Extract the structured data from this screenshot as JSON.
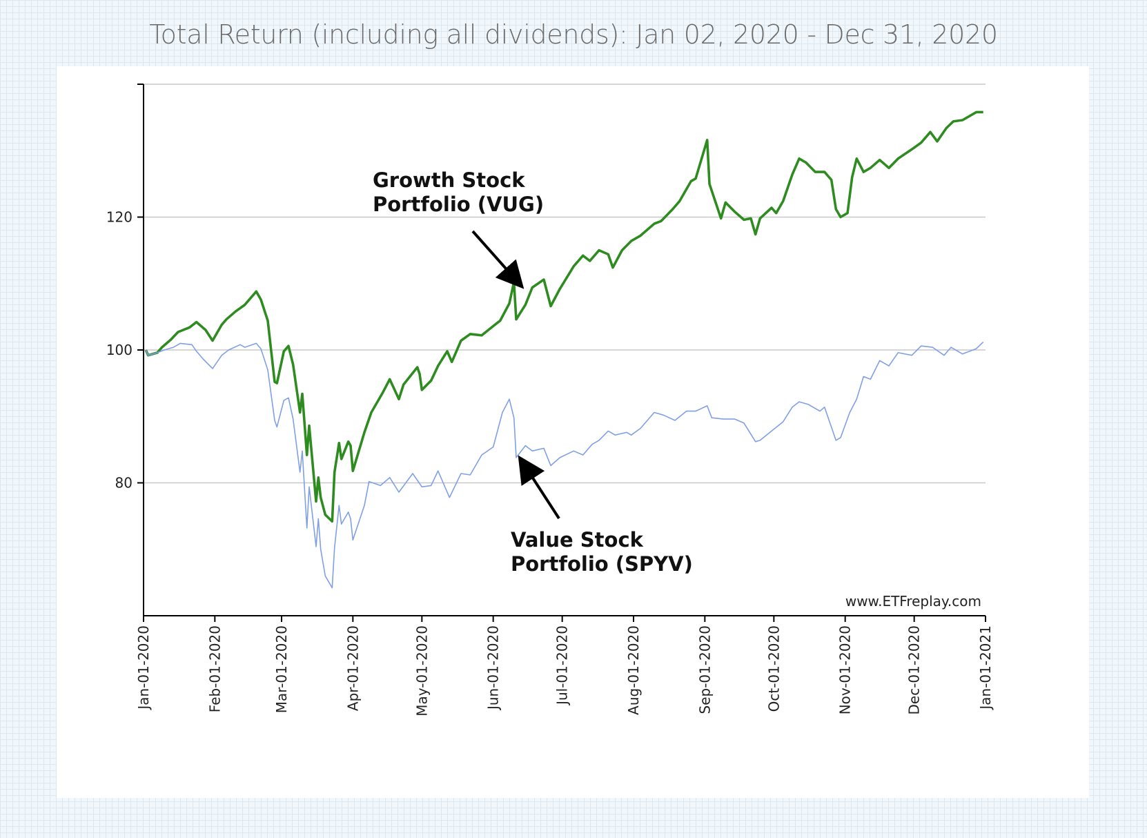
{
  "chart_data": {
    "type": "line",
    "title": "Total Return (including all dividends): Jan 02, 2020 - Dec 31, 2020",
    "xlabel": "",
    "ylabel": "",
    "x_range": [
      "2020-01-01",
      "2021-01-01"
    ],
    "ylim": [
      60,
      140
    ],
    "y_ticks": [
      80,
      100,
      120
    ],
    "x_tick_labels": [
      "Jan-01-2020",
      "Feb-01-2020",
      "Mar-01-2020",
      "Apr-01-2020",
      "May-01-2020",
      "Jun-01-2020",
      "Jul-01-2020",
      "Aug-01-2020",
      "Sep-01-2020",
      "Oct-01-2020",
      "Nov-01-2020",
      "Dec-01-2020",
      "Jan-01-2021"
    ],
    "x_tick_dates": [
      "2020-01-01",
      "2020-02-01",
      "2020-03-01",
      "2020-04-01",
      "2020-05-01",
      "2020-06-01",
      "2020-07-01",
      "2020-08-01",
      "2020-09-01",
      "2020-10-01",
      "2020-11-01",
      "2020-12-01",
      "2021-01-01"
    ],
    "grid": "horizontal",
    "series": [
      {
        "name": "Growth Stock Portfolio (VUG)",
        "color": "#2e8b20",
        "points": [
          [
            "2020-01-02",
            100
          ],
          [
            "2020-01-03",
            99.2
          ],
          [
            "2020-01-07",
            99.6
          ],
          [
            "2020-01-09",
            100.4
          ],
          [
            "2020-01-13",
            101.6
          ],
          [
            "2020-01-16",
            102.7
          ],
          [
            "2020-01-21",
            103.4
          ],
          [
            "2020-01-24",
            104.2
          ],
          [
            "2020-01-28",
            103.0
          ],
          [
            "2020-01-31",
            101.4
          ],
          [
            "2020-02-04",
            103.8
          ],
          [
            "2020-02-06",
            104.6
          ],
          [
            "2020-02-10",
            105.8
          ],
          [
            "2020-02-14",
            106.8
          ],
          [
            "2020-02-19",
            108.8
          ],
          [
            "2020-02-21",
            107.6
          ],
          [
            "2020-02-24",
            104.4
          ],
          [
            "2020-02-27",
            95.2
          ],
          [
            "2020-02-28",
            95.0
          ],
          [
            "2020-03-02",
            99.8
          ],
          [
            "2020-03-04",
            100.6
          ],
          [
            "2020-03-06",
            97.8
          ],
          [
            "2020-03-09",
            90.6
          ],
          [
            "2020-03-10",
            93.4
          ],
          [
            "2020-03-12",
            84.2
          ],
          [
            "2020-03-13",
            88.6
          ],
          [
            "2020-03-16",
            77.2
          ],
          [
            "2020-03-17",
            80.8
          ],
          [
            "2020-03-18",
            77.8
          ],
          [
            "2020-03-20",
            75.2
          ],
          [
            "2020-03-23",
            74.2
          ],
          [
            "2020-03-24",
            81.6
          ],
          [
            "2020-03-26",
            86.0
          ],
          [
            "2020-03-27",
            83.6
          ],
          [
            "2020-03-30",
            86.2
          ],
          [
            "2020-03-31",
            85.6
          ],
          [
            "2020-04-01",
            81.8
          ],
          [
            "2020-04-06",
            87.6
          ],
          [
            "2020-04-09",
            90.6
          ],
          [
            "2020-04-14",
            93.6
          ],
          [
            "2020-04-17",
            95.6
          ],
          [
            "2020-04-21",
            92.6
          ],
          [
            "2020-04-23",
            94.8
          ],
          [
            "2020-04-29",
            97.4
          ],
          [
            "2020-04-30",
            96.4
          ],
          [
            "2020-05-01",
            94.0
          ],
          [
            "2020-05-05",
            95.4
          ],
          [
            "2020-05-08",
            97.6
          ],
          [
            "2020-05-12",
            99.8
          ],
          [
            "2020-05-14",
            98.2
          ],
          [
            "2020-05-18",
            101.4
          ],
          [
            "2020-05-22",
            102.4
          ],
          [
            "2020-05-27",
            102.2
          ],
          [
            "2020-06-01",
            103.6
          ],
          [
            "2020-06-04",
            104.4
          ],
          [
            "2020-06-08",
            107.0
          ],
          [
            "2020-06-10",
            110.2
          ],
          [
            "2020-06-11",
            104.6
          ],
          [
            "2020-06-15",
            106.8
          ],
          [
            "2020-06-18",
            109.4
          ],
          [
            "2020-06-23",
            110.6
          ],
          [
            "2020-06-26",
            106.6
          ],
          [
            "2020-06-30",
            109.2
          ],
          [
            "2020-07-06",
            112.6
          ],
          [
            "2020-07-10",
            114.2
          ],
          [
            "2020-07-13",
            113.4
          ],
          [
            "2020-07-17",
            115.0
          ],
          [
            "2020-07-21",
            114.4
          ],
          [
            "2020-07-23",
            112.4
          ],
          [
            "2020-07-27",
            115.0
          ],
          [
            "2020-07-31",
            116.4
          ],
          [
            "2020-08-04",
            117.2
          ],
          [
            "2020-08-10",
            119.0
          ],
          [
            "2020-08-13",
            119.4
          ],
          [
            "2020-08-18",
            121.2
          ],
          [
            "2020-08-21",
            122.4
          ],
          [
            "2020-08-26",
            125.4
          ],
          [
            "2020-08-28",
            125.8
          ],
          [
            "2020-09-02",
            131.6
          ],
          [
            "2020-09-03",
            125.0
          ],
          [
            "2020-09-08",
            119.8
          ],
          [
            "2020-09-10",
            122.2
          ],
          [
            "2020-09-14",
            120.8
          ],
          [
            "2020-09-18",
            119.6
          ],
          [
            "2020-09-21",
            119.8
          ],
          [
            "2020-09-23",
            117.4
          ],
          [
            "2020-09-25",
            119.8
          ],
          [
            "2020-09-30",
            121.4
          ],
          [
            "2020-10-02",
            120.6
          ],
          [
            "2020-10-05",
            122.4
          ],
          [
            "2020-10-09",
            126.4
          ],
          [
            "2020-10-12",
            128.8
          ],
          [
            "2020-10-15",
            128.2
          ],
          [
            "2020-10-19",
            126.8
          ],
          [
            "2020-10-23",
            126.8
          ],
          [
            "2020-10-26",
            125.6
          ],
          [
            "2020-10-28",
            121.2
          ],
          [
            "2020-10-30",
            120.0
          ],
          [
            "2020-11-02",
            120.6
          ],
          [
            "2020-11-04",
            126.0
          ],
          [
            "2020-11-06",
            128.8
          ],
          [
            "2020-11-09",
            126.8
          ],
          [
            "2020-11-12",
            127.4
          ],
          [
            "2020-11-16",
            128.6
          ],
          [
            "2020-11-20",
            127.4
          ],
          [
            "2020-11-24",
            128.8
          ],
          [
            "2020-11-30",
            130.2
          ],
          [
            "2020-12-04",
            131.2
          ],
          [
            "2020-12-08",
            132.8
          ],
          [
            "2020-12-11",
            131.4
          ],
          [
            "2020-12-15",
            133.4
          ],
          [
            "2020-12-18",
            134.4
          ],
          [
            "2020-12-22",
            134.6
          ],
          [
            "2020-12-28",
            135.8
          ],
          [
            "2020-12-31",
            135.8
          ]
        ]
      },
      {
        "name": "Value Stock Portfolio (SPYV)",
        "color": "#7f9fe8",
        "points": [
          [
            "2020-01-02",
            100
          ],
          [
            "2020-01-03",
            99.2
          ],
          [
            "2020-01-07",
            99.6
          ],
          [
            "2020-01-10",
            100.0
          ],
          [
            "2020-01-14",
            100.4
          ],
          [
            "2020-01-17",
            101.0
          ],
          [
            "2020-01-22",
            100.8
          ],
          [
            "2020-01-24",
            99.8
          ],
          [
            "2020-01-27",
            98.6
          ],
          [
            "2020-01-31",
            97.2
          ],
          [
            "2020-02-04",
            99.2
          ],
          [
            "2020-02-07",
            100.0
          ],
          [
            "2020-02-12",
            100.8
          ],
          [
            "2020-02-14",
            100.4
          ],
          [
            "2020-02-19",
            101.0
          ],
          [
            "2020-02-21",
            100.2
          ],
          [
            "2020-02-24",
            97.0
          ],
          [
            "2020-02-27",
            89.4
          ],
          [
            "2020-02-28",
            88.4
          ],
          [
            "2020-03-02",
            92.4
          ],
          [
            "2020-03-04",
            92.8
          ],
          [
            "2020-03-06",
            89.6
          ],
          [
            "2020-03-09",
            81.6
          ],
          [
            "2020-03-10",
            84.8
          ],
          [
            "2020-03-12",
            73.2
          ],
          [
            "2020-03-13",
            79.4
          ],
          [
            "2020-03-16",
            70.4
          ],
          [
            "2020-03-17",
            74.6
          ],
          [
            "2020-03-18",
            70.0
          ],
          [
            "2020-03-20",
            66.0
          ],
          [
            "2020-03-23",
            64.2
          ],
          [
            "2020-03-24",
            70.2
          ],
          [
            "2020-03-26",
            76.6
          ],
          [
            "2020-03-27",
            73.8
          ],
          [
            "2020-03-30",
            75.6
          ],
          [
            "2020-03-31",
            74.6
          ],
          [
            "2020-04-01",
            71.4
          ],
          [
            "2020-04-06",
            76.6
          ],
          [
            "2020-04-08",
            80.2
          ],
          [
            "2020-04-13",
            79.6
          ],
          [
            "2020-04-17",
            80.8
          ],
          [
            "2020-04-21",
            78.6
          ],
          [
            "2020-04-27",
            81.4
          ],
          [
            "2020-05-01",
            79.4
          ],
          [
            "2020-05-05",
            79.6
          ],
          [
            "2020-05-08",
            81.8
          ],
          [
            "2020-05-13",
            77.8
          ],
          [
            "2020-05-18",
            81.4
          ],
          [
            "2020-05-22",
            81.2
          ],
          [
            "2020-05-27",
            84.2
          ],
          [
            "2020-06-01",
            85.4
          ],
          [
            "2020-06-05",
            90.6
          ],
          [
            "2020-06-08",
            92.6
          ],
          [
            "2020-06-10",
            89.8
          ],
          [
            "2020-06-11",
            83.8
          ],
          [
            "2020-06-15",
            85.6
          ],
          [
            "2020-06-18",
            84.8
          ],
          [
            "2020-06-23",
            85.2
          ],
          [
            "2020-06-26",
            82.6
          ],
          [
            "2020-06-30",
            83.8
          ],
          [
            "2020-07-06",
            84.8
          ],
          [
            "2020-07-10",
            84.2
          ],
          [
            "2020-07-14",
            85.8
          ],
          [
            "2020-07-17",
            86.4
          ],
          [
            "2020-07-21",
            87.8
          ],
          [
            "2020-07-24",
            87.2
          ],
          [
            "2020-07-29",
            87.6
          ],
          [
            "2020-07-31",
            87.2
          ],
          [
            "2020-08-04",
            88.2
          ],
          [
            "2020-08-10",
            90.6
          ],
          [
            "2020-08-14",
            90.2
          ],
          [
            "2020-08-19",
            89.4
          ],
          [
            "2020-08-24",
            90.8
          ],
          [
            "2020-08-28",
            90.8
          ],
          [
            "2020-09-02",
            91.6
          ],
          [
            "2020-09-04",
            89.8
          ],
          [
            "2020-09-09",
            89.6
          ],
          [
            "2020-09-14",
            89.6
          ],
          [
            "2020-09-18",
            89.0
          ],
          [
            "2020-09-23",
            86.2
          ],
          [
            "2020-09-25",
            86.4
          ],
          [
            "2020-09-30",
            87.8
          ],
          [
            "2020-10-05",
            89.2
          ],
          [
            "2020-10-09",
            91.4
          ],
          [
            "2020-10-12",
            92.2
          ],
          [
            "2020-10-16",
            91.8
          ],
          [
            "2020-10-21",
            90.8
          ],
          [
            "2020-10-23",
            91.4
          ],
          [
            "2020-10-28",
            86.4
          ],
          [
            "2020-10-30",
            86.8
          ],
          [
            "2020-11-03",
            90.6
          ],
          [
            "2020-11-06",
            92.6
          ],
          [
            "2020-11-09",
            96.0
          ],
          [
            "2020-11-12",
            95.6
          ],
          [
            "2020-11-16",
            98.4
          ],
          [
            "2020-11-20",
            97.6
          ],
          [
            "2020-11-24",
            99.6
          ],
          [
            "2020-11-30",
            99.2
          ],
          [
            "2020-12-04",
            100.6
          ],
          [
            "2020-12-09",
            100.4
          ],
          [
            "2020-12-14",
            99.2
          ],
          [
            "2020-12-17",
            100.4
          ],
          [
            "2020-12-22",
            99.4
          ],
          [
            "2020-12-28",
            100.2
          ],
          [
            "2020-12-31",
            101.2
          ]
        ]
      }
    ],
    "annotations": [
      {
        "lines": [
          "Growth Stock",
          "Portfolio (VUG)"
        ],
        "arrow_to": [
          "2020-06-13",
          109.8
        ]
      },
      {
        "lines": [
          "Value Stock",
          "Portfolio (SPYV)"
        ],
        "arrow_to": [
          "2020-06-12",
          83.8
        ]
      }
    ],
    "watermark": "www.ETFreplay.com"
  }
}
